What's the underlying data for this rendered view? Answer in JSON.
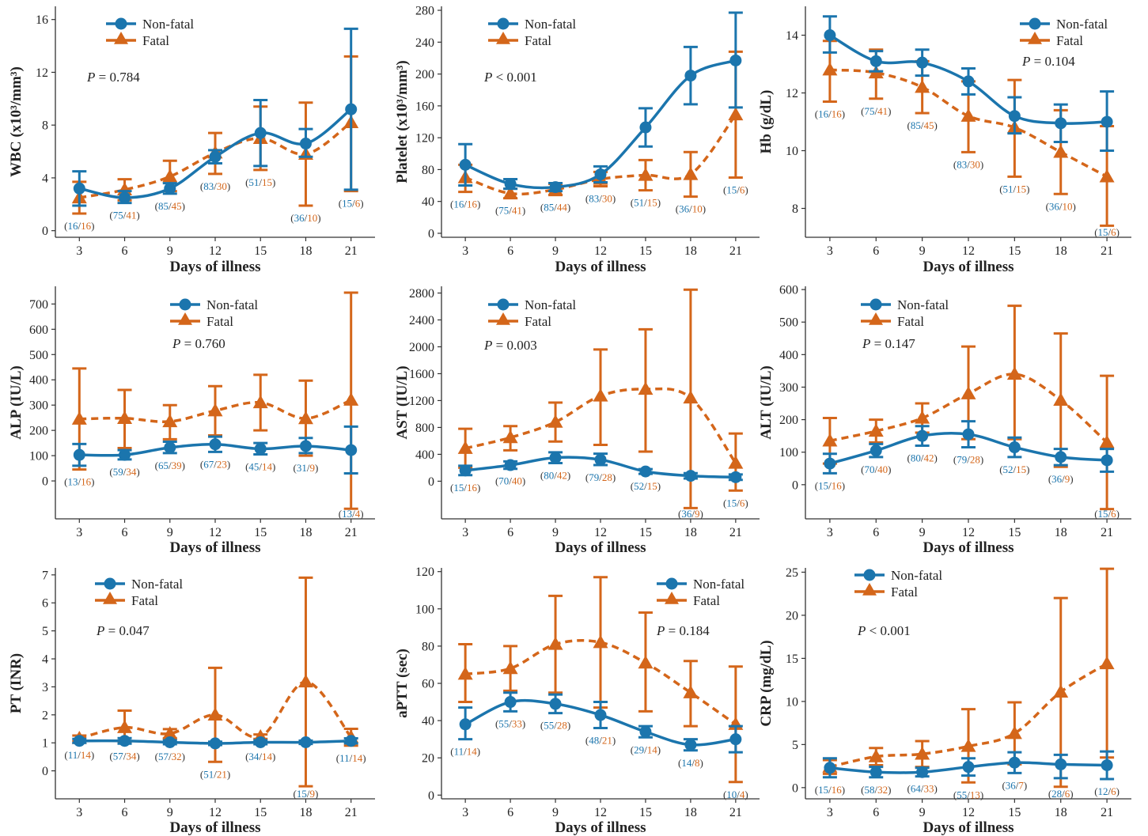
{
  "colors": {
    "nonfatal": "#1b75ad",
    "fatal": "#d4661a",
    "axis": "#333333"
  },
  "legend": {
    "nonfatal": "Non-fatal",
    "fatal": "Fatal"
  },
  "chart_data": [
    {
      "type": "line",
      "ylabel": "WBC (x10³/mm³)",
      "xlabel": "Days of illness",
      "p_prefix": "P",
      "p_text": " = 0.784",
      "x": [
        3,
        6,
        9,
        12,
        15,
        18,
        21
      ],
      "yticks": [
        0,
        4,
        8,
        12,
        16
      ],
      "ylim": [
        -0.5,
        17
      ],
      "legend_position": "top-left",
      "series": [
        {
          "name": "Non-fatal",
          "values": [
            3.2,
            2.5,
            3.2,
            5.6,
            7.4,
            6.6,
            9.2
          ],
          "lower": [
            1.9,
            2.1,
            2.8,
            5.1,
            4.9,
            5.6,
            3.1
          ],
          "upper": [
            4.5,
            3.0,
            3.6,
            6.1,
            9.9,
            7.7,
            15.3
          ]
        },
        {
          "name": "Fatal",
          "values": [
            2.5,
            3.1,
            4.1,
            5.9,
            7.0,
            5.8,
            8.2
          ],
          "lower": [
            1.3,
            2.3,
            3.0,
            4.3,
            4.6,
            1.9,
            3.0
          ],
          "upper": [
            3.7,
            3.9,
            5.3,
            7.4,
            9.4,
            9.7,
            13.2
          ]
        }
      ],
      "n_nonfatal": [
        "16",
        "75",
        "85",
        "83",
        "51",
        "36",
        "15"
      ],
      "n_fatal": [
        "16",
        "41",
        "45",
        "30",
        "15",
        "10",
        "6"
      ]
    },
    {
      "type": "line",
      "ylabel": "Platelet (x10³/mm³)",
      "xlabel": "Days of illness",
      "p_prefix": "P",
      "p_text": " < 0.001",
      "x": [
        3,
        6,
        9,
        12,
        15,
        18,
        21
      ],
      "yticks": [
        0,
        40,
        80,
        120,
        160,
        200,
        240,
        280
      ],
      "ylim": [
        -5,
        285
      ],
      "legend_position": "top-left",
      "series": [
        {
          "name": "Non-fatal",
          "values": [
            86,
            62,
            58,
            74,
            133,
            198,
            217
          ],
          "lower": [
            60,
            56,
            53,
            64,
            109,
            162,
            158
          ],
          "upper": [
            112,
            68,
            63,
            84,
            157,
            234,
            277
          ]
        },
        {
          "name": "Fatal",
          "values": [
            70,
            50,
            55,
            68,
            73,
            74,
            149
          ],
          "lower": [
            52,
            44,
            48,
            59,
            54,
            46,
            70
          ],
          "upper": [
            86,
            56,
            62,
            77,
            92,
            102,
            228
          ]
        }
      ],
      "n_nonfatal": [
        "16",
        "75",
        "85",
        "83",
        "51",
        "36",
        "15"
      ],
      "n_fatal": [
        "16",
        "41",
        "44",
        "30",
        "15",
        "10",
        "6"
      ]
    },
    {
      "type": "line",
      "ylabel": "Hb (g/dL)",
      "xlabel": "Days of illness",
      "p_prefix": "P",
      "p_text": " = 0.104",
      "x": [
        3,
        6,
        9,
        12,
        15,
        18,
        21
      ],
      "yticks": [
        8,
        10,
        12,
        14
      ],
      "ylim": [
        7,
        15
      ],
      "legend_position": "top-right",
      "series": [
        {
          "name": "Non-fatal",
          "values": [
            14.0,
            13.1,
            13.05,
            12.4,
            11.2,
            10.95,
            11.0
          ],
          "lower": [
            13.4,
            12.75,
            12.6,
            11.95,
            10.6,
            10.3,
            10.0
          ],
          "upper": [
            14.65,
            13.45,
            13.5,
            12.85,
            11.85,
            11.6,
            12.05
          ]
        },
        {
          "name": "Fatal",
          "values": [
            12.8,
            12.7,
            12.2,
            11.2,
            10.8,
            9.95,
            9.1
          ],
          "lower": [
            11.7,
            11.8,
            11.3,
            9.95,
            9.1,
            8.5,
            7.4
          ],
          "upper": [
            13.8,
            13.5,
            13.1,
            12.4,
            12.45,
            11.4,
            10.85
          ]
        }
      ],
      "n_nonfatal": [
        "16",
        "75",
        "85",
        "83",
        "51",
        "36",
        "15"
      ],
      "n_fatal": [
        "16",
        "41",
        "45",
        "30",
        "15",
        "10",
        "6"
      ]
    },
    {
      "type": "line",
      "ylabel": "ALP (IU/L)",
      "xlabel": "Days of illness",
      "p_prefix": "P",
      "p_text": " = 0.760",
      "x": [
        3,
        6,
        9,
        12,
        15,
        18,
        21
      ],
      "yticks": [
        0,
        100,
        200,
        300,
        400,
        500,
        600,
        700
      ],
      "ylim": [
        -150,
        770
      ],
      "legend_position": "top-center",
      "series": [
        {
          "name": "Non-fatal",
          "values": [
            103,
            103,
            132,
            145,
            127,
            138,
            122
          ],
          "lower": [
            60,
            85,
            110,
            115,
            105,
            110,
            30
          ],
          "upper": [
            146,
            122,
            155,
            175,
            150,
            170,
            215
          ]
        },
        {
          "name": "Fatal",
          "values": [
            245,
            248,
            235,
            278,
            310,
            247,
            320
          ],
          "lower": [
            45,
            130,
            165,
            180,
            200,
            100,
            -110
          ],
          "upper": [
            445,
            360,
            300,
            375,
            420,
            397,
            745
          ]
        }
      ],
      "n_nonfatal": [
        "13",
        "59",
        "65",
        "67",
        "45",
        "31",
        "13"
      ],
      "n_fatal": [
        "16",
        "34",
        "39",
        "23",
        "14",
        "9",
        "4"
      ]
    },
    {
      "type": "line",
      "ylabel": "AST (IU/L)",
      "xlabel": "Days of illness",
      "p_prefix": "P",
      "p_text": " = 0.003",
      "x": [
        3,
        6,
        9,
        12,
        15,
        18,
        21
      ],
      "yticks": [
        0,
        400,
        800,
        1200,
        1600,
        2000,
        2400,
        2800
      ],
      "ylim": [
        -560,
        2900
      ],
      "legend_position": "top-left",
      "series": [
        {
          "name": "Non-fatal",
          "values": [
            160,
            240,
            350,
            320,
            145,
            80,
            60
          ],
          "lower": [
            90,
            185,
            270,
            240,
            110,
            40,
            20
          ],
          "upper": [
            230,
            295,
            430,
            410,
            180,
            120,
            100
          ]
        },
        {
          "name": "Fatal",
          "values": [
            490,
            650,
            880,
            1270,
            1370,
            1240,
            270
          ],
          "lower": [
            200,
            460,
            590,
            540,
            440,
            -400,
            -140
          ],
          "upper": [
            780,
            820,
            1170,
            1960,
            2260,
            2850,
            710
          ]
        }
      ],
      "n_nonfatal": [
        "15",
        "70",
        "80",
        "79",
        "52",
        "36",
        "15"
      ],
      "n_fatal": [
        "16",
        "40",
        "42",
        "28",
        "15",
        "9",
        "6"
      ]
    },
    {
      "type": "line",
      "ylabel": "ALT (IU/L)",
      "xlabel": "Days of illness",
      "p_prefix": "P",
      "p_text": " = 0.147",
      "x": [
        3,
        6,
        9,
        12,
        15,
        18,
        21
      ],
      "yticks": [
        0,
        100,
        200,
        300,
        400,
        500,
        600
      ],
      "ylim": [
        -105,
        610
      ],
      "legend_position": "top-center",
      "series": [
        {
          "name": "Non-fatal",
          "values": [
            65,
            105,
            150,
            155,
            115,
            85,
            75
          ],
          "lower": [
            35,
            85,
            120,
            115,
            85,
            60,
            40
          ],
          "upper": [
            95,
            125,
            180,
            195,
            145,
            110,
            110
          ]
        },
        {
          "name": "Fatal",
          "values": [
            135,
            165,
            205,
            280,
            340,
            260,
            130
          ],
          "lower": [
            65,
            130,
            160,
            140,
            140,
            55,
            -75
          ],
          "upper": [
            205,
            200,
            250,
            425,
            550,
            465,
            335
          ]
        }
      ],
      "n_nonfatal": [
        "15",
        "70",
        "80",
        "79",
        "52",
        "36",
        "15"
      ],
      "n_fatal": [
        "16",
        "40",
        "42",
        "28",
        "15",
        "9",
        "6"
      ]
    },
    {
      "type": "line",
      "ylabel": "PT (INR)",
      "xlabel": "Days of illness",
      "p_prefix": "P",
      "p_text": " = 0.047",
      "x": [
        3,
        6,
        9,
        12,
        15,
        18,
        21
      ],
      "yticks": [
        0,
        1,
        2,
        3,
        4,
        5,
        6,
        7
      ],
      "ylim": [
        -1.0,
        7.25
      ],
      "legend_position": "top-left",
      "series": [
        {
          "name": "Non-fatal",
          "values": [
            1.07,
            1.07,
            1.02,
            0.98,
            1.02,
            1.02,
            1.07
          ],
          "lower": [
            1.0,
            0.97,
            0.95,
            0.92,
            0.95,
            0.96,
            0.98
          ],
          "upper": [
            1.14,
            1.17,
            1.09,
            1.04,
            1.09,
            1.08,
            1.16
          ]
        },
        {
          "name": "Fatal",
          "values": [
            1.16,
            1.55,
            1.33,
            2.0,
            1.22,
            3.18,
            1.2
          ],
          "lower": [
            1.06,
            1.0,
            1.17,
            0.32,
            1.14,
            -0.55,
            0.9
          ],
          "upper": [
            1.26,
            2.15,
            1.49,
            3.68,
            1.3,
            6.9,
            1.5
          ]
        }
      ],
      "n_nonfatal": [
        "11",
        "57",
        "57",
        "51",
        "34",
        "15",
        "11"
      ],
      "n_fatal": [
        "14",
        "34",
        "32",
        "21",
        "14",
        "9",
        "14"
      ]
    },
    {
      "type": "line",
      "ylabel": "aPTT (sec)",
      "xlabel": "Days of illness",
      "p_prefix": "P",
      "p_text": " = 0.184",
      "x": [
        3,
        6,
        9,
        12,
        15,
        18,
        21
      ],
      "yticks": [
        0,
        20,
        40,
        60,
        80,
        100,
        120
      ],
      "ylim": [
        -2,
        122
      ],
      "legend_position": "top-right",
      "series": [
        {
          "name": "Non-fatal",
          "values": [
            38,
            50,
            49,
            43,
            34,
            27,
            30
          ],
          "lower": [
            30,
            45,
            44,
            36,
            31,
            24,
            23
          ],
          "upper": [
            47,
            55,
            54,
            50,
            37,
            30,
            37
          ]
        },
        {
          "name": "Fatal",
          "values": [
            65,
            68,
            81,
            82,
            71,
            55,
            38
          ],
          "lower": [
            50,
            56,
            55,
            47,
            45,
            37,
            7
          ],
          "upper": [
            81,
            80,
            107,
            117,
            98,
            72,
            69
          ]
        }
      ],
      "n_nonfatal": [
        "11",
        "55",
        "55",
        "48",
        "29",
        "14",
        "10"
      ],
      "n_fatal": [
        "14",
        "33",
        "28",
        "21",
        "14",
        "8",
        "4"
      ]
    },
    {
      "type": "line",
      "ylabel": "CRP (mg/dL)",
      "xlabel": "Days of illness",
      "p_prefix": "P",
      "p_text": " < 0.001",
      "x": [
        3,
        6,
        9,
        12,
        15,
        18,
        21
      ],
      "yticks": [
        0,
        5,
        10,
        15,
        20,
        25
      ],
      "ylim": [
        -1.3,
        25.5
      ],
      "legend_position": "top-left",
      "series": [
        {
          "name": "Non-fatal",
          "values": [
            2.3,
            1.8,
            1.8,
            2.4,
            2.9,
            2.7,
            2.6
          ],
          "lower": [
            1.2,
            1.2,
            1.3,
            1.4,
            1.7,
            1.1,
            1.0
          ],
          "upper": [
            3.4,
            2.4,
            2.3,
            3.4,
            4.1,
            3.8,
            4.2
          ]
        },
        {
          "name": "Fatal",
          "values": [
            2.4,
            3.6,
            3.9,
            4.8,
            6.3,
            11.1,
            14.4
          ],
          "lower": [
            1.6,
            2.6,
            2.4,
            0.6,
            2.7,
            0.1,
            3.5
          ],
          "upper": [
            3.2,
            4.6,
            5.4,
            9.1,
            9.9,
            22.0,
            25.4
          ]
        }
      ],
      "n_nonfatal": [
        "15",
        "58",
        "64",
        "55",
        "36",
        "28",
        "12"
      ],
      "n_fatal": [
        "16",
        "32",
        "33",
        "13",
        "7",
        "6",
        "6"
      ]
    }
  ]
}
